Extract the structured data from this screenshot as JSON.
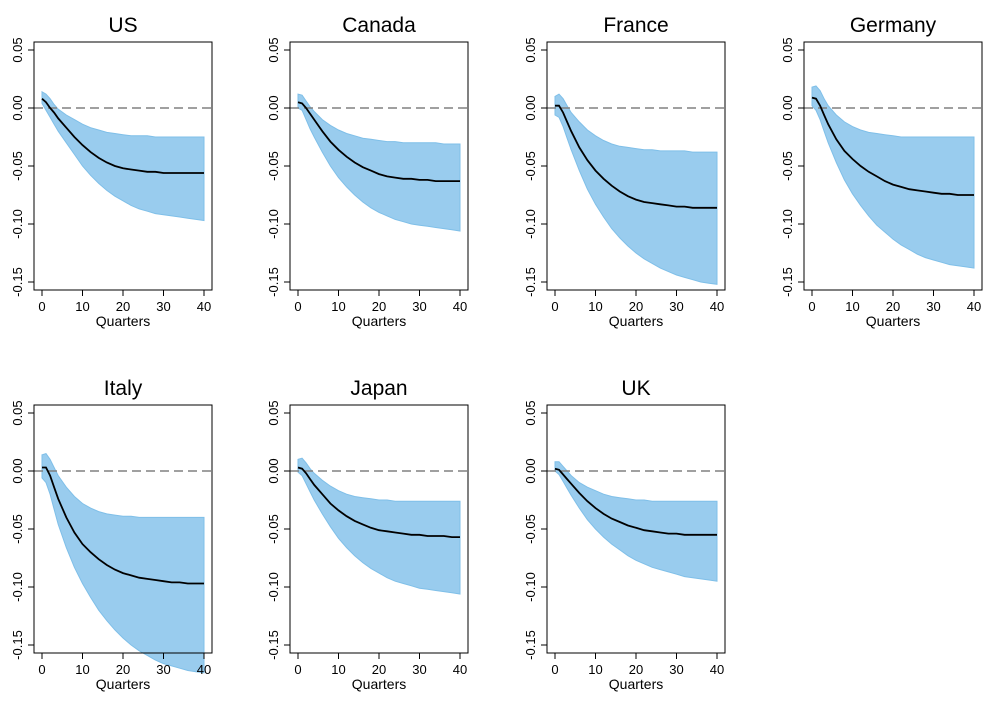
{
  "colors": {
    "band": "#99ccee",
    "band_edge": "#7fbfe8",
    "median": "#000000",
    "zero_line": "#808080"
  },
  "chart_data": [
    {
      "type": "area",
      "title": "US",
      "xlabel": "Quarters",
      "ylabel": "",
      "xlim": [
        0,
        40
      ],
      "ylim": [
        -0.15,
        0.05
      ],
      "grid": false,
      "xticks": [
        "0",
        "10",
        "20",
        "30",
        "40"
      ],
      "yticks": [
        "-0.15",
        "-0.10",
        "-0.05",
        "0.00",
        "0.05"
      ],
      "zero_line": true,
      "x": [
        0,
        1,
        2,
        3,
        4,
        6,
        8,
        10,
        12,
        14,
        16,
        18,
        20,
        22,
        24,
        26,
        28,
        30,
        32,
        34,
        36,
        38,
        40
      ],
      "series": [
        {
          "role": "median",
          "values": [
            0.008,
            0.005,
            0.0,
            -0.004,
            -0.009,
            -0.017,
            -0.025,
            -0.032,
            -0.038,
            -0.043,
            -0.047,
            -0.05,
            -0.052,
            -0.053,
            -0.054,
            -0.055,
            -0.055,
            -0.056,
            -0.056,
            -0.056,
            -0.056,
            -0.056,
            -0.056
          ]
        },
        {
          "role": "upper",
          "values": [
            0.014,
            0.012,
            0.008,
            0.003,
            -0.001,
            -0.006,
            -0.01,
            -0.014,
            -0.017,
            -0.019,
            -0.021,
            -0.022,
            -0.023,
            -0.024,
            -0.024,
            -0.024,
            -0.025,
            -0.025,
            -0.025,
            -0.025,
            -0.025,
            -0.025,
            -0.025
          ]
        },
        {
          "role": "lower",
          "values": [
            0.004,
            -0.002,
            -0.008,
            -0.014,
            -0.02,
            -0.03,
            -0.04,
            -0.05,
            -0.058,
            -0.065,
            -0.071,
            -0.076,
            -0.08,
            -0.084,
            -0.087,
            -0.089,
            -0.091,
            -0.092,
            -0.093,
            -0.094,
            -0.095,
            -0.096,
            -0.097
          ]
        }
      ]
    },
    {
      "type": "area",
      "title": "Canada",
      "xlabel": "Quarters",
      "ylabel": "",
      "xlim": [
        0,
        40
      ],
      "ylim": [
        -0.15,
        0.05
      ],
      "grid": false,
      "xticks": [
        "0",
        "10",
        "20",
        "30",
        "40"
      ],
      "yticks": [
        "-0.15",
        "-0.10",
        "-0.05",
        "0.00",
        "0.05"
      ],
      "zero_line": true,
      "x": [
        0,
        1,
        2,
        3,
        4,
        6,
        8,
        10,
        12,
        14,
        16,
        18,
        20,
        22,
        24,
        26,
        28,
        30,
        32,
        34,
        36,
        38,
        40
      ],
      "series": [
        {
          "role": "median",
          "values": [
            0.005,
            0.004,
            0.0,
            -0.005,
            -0.01,
            -0.02,
            -0.029,
            -0.036,
            -0.042,
            -0.047,
            -0.051,
            -0.054,
            -0.057,
            -0.059,
            -0.06,
            -0.061,
            -0.061,
            -0.062,
            -0.062,
            -0.063,
            -0.063,
            -0.063,
            -0.063
          ]
        },
        {
          "role": "upper",
          "values": [
            0.012,
            0.011,
            0.006,
            0.001,
            -0.003,
            -0.01,
            -0.015,
            -0.019,
            -0.022,
            -0.024,
            -0.026,
            -0.027,
            -0.028,
            -0.029,
            -0.029,
            -0.03,
            -0.03,
            -0.03,
            -0.03,
            -0.03,
            -0.031,
            -0.031,
            -0.031
          ]
        },
        {
          "role": "lower",
          "values": [
            0.0,
            -0.002,
            -0.01,
            -0.018,
            -0.025,
            -0.038,
            -0.05,
            -0.06,
            -0.068,
            -0.075,
            -0.081,
            -0.086,
            -0.09,
            -0.093,
            -0.096,
            -0.098,
            -0.1,
            -0.101,
            -0.102,
            -0.103,
            -0.104,
            -0.105,
            -0.106
          ]
        }
      ]
    },
    {
      "type": "area",
      "title": "France",
      "xlabel": "Quarters",
      "ylabel": "",
      "xlim": [
        0,
        40
      ],
      "ylim": [
        -0.15,
        0.05
      ],
      "grid": false,
      "xticks": [
        "0",
        "10",
        "20",
        "30",
        "40"
      ],
      "yticks": [
        "-0.15",
        "-0.10",
        "-0.05",
        "0.00",
        "0.05"
      ],
      "zero_line": true,
      "x": [
        0,
        1,
        2,
        3,
        4,
        6,
        8,
        10,
        12,
        14,
        16,
        18,
        20,
        22,
        24,
        26,
        28,
        30,
        32,
        34,
        36,
        38,
        40
      ],
      "series": [
        {
          "role": "median",
          "values": [
            0.002,
            0.002,
            -0.004,
            -0.012,
            -0.02,
            -0.034,
            -0.045,
            -0.054,
            -0.061,
            -0.067,
            -0.072,
            -0.076,
            -0.079,
            -0.081,
            -0.082,
            -0.083,
            -0.084,
            -0.085,
            -0.085,
            -0.086,
            -0.086,
            -0.086,
            -0.086
          ]
        },
        {
          "role": "upper",
          "values": [
            0.01,
            0.012,
            0.008,
            0.002,
            -0.004,
            -0.012,
            -0.019,
            -0.024,
            -0.028,
            -0.031,
            -0.033,
            -0.034,
            -0.035,
            -0.036,
            -0.036,
            -0.037,
            -0.037,
            -0.037,
            -0.037,
            -0.038,
            -0.038,
            -0.038,
            -0.038
          ]
        },
        {
          "role": "lower",
          "values": [
            -0.006,
            -0.008,
            -0.016,
            -0.026,
            -0.036,
            -0.054,
            -0.07,
            -0.083,
            -0.094,
            -0.104,
            -0.112,
            -0.119,
            -0.125,
            -0.13,
            -0.134,
            -0.138,
            -0.141,
            -0.144,
            -0.146,
            -0.148,
            -0.15,
            -0.151,
            -0.152
          ]
        }
      ]
    },
    {
      "type": "area",
      "title": "Germany",
      "xlabel": "Quarters",
      "ylabel": "",
      "xlim": [
        0,
        40
      ],
      "ylim": [
        -0.15,
        0.05
      ],
      "grid": false,
      "xticks": [
        "0",
        "10",
        "20",
        "30",
        "40"
      ],
      "yticks": [
        "-0.15",
        "-0.10",
        "-0.05",
        "0.00",
        "0.05"
      ],
      "zero_line": true,
      "x": [
        0,
        1,
        2,
        3,
        4,
        6,
        8,
        10,
        12,
        14,
        16,
        18,
        20,
        22,
        24,
        26,
        28,
        30,
        32,
        34,
        36,
        38,
        40
      ],
      "series": [
        {
          "role": "median",
          "values": [
            0.009,
            0.008,
            0.002,
            -0.006,
            -0.014,
            -0.027,
            -0.037,
            -0.044,
            -0.05,
            -0.055,
            -0.059,
            -0.063,
            -0.066,
            -0.068,
            -0.07,
            -0.071,
            -0.072,
            -0.073,
            -0.074,
            -0.074,
            -0.075,
            -0.075,
            -0.075
          ]
        },
        {
          "role": "upper",
          "values": [
            0.018,
            0.019,
            0.015,
            0.008,
            0.002,
            -0.006,
            -0.012,
            -0.016,
            -0.019,
            -0.021,
            -0.022,
            -0.023,
            -0.024,
            -0.025,
            -0.025,
            -0.025,
            -0.025,
            -0.025,
            -0.025,
            -0.025,
            -0.025,
            -0.025,
            -0.025
          ]
        },
        {
          "role": "lower",
          "values": [
            0.002,
            -0.002,
            -0.01,
            -0.02,
            -0.03,
            -0.047,
            -0.062,
            -0.074,
            -0.084,
            -0.093,
            -0.101,
            -0.107,
            -0.113,
            -0.118,
            -0.122,
            -0.126,
            -0.129,
            -0.131,
            -0.133,
            -0.135,
            -0.136,
            -0.137,
            -0.138
          ]
        }
      ]
    },
    {
      "type": "area",
      "title": "Italy",
      "xlabel": "Quarters",
      "ylabel": "",
      "xlim": [
        0,
        40
      ],
      "ylim": [
        -0.15,
        0.05
      ],
      "grid": false,
      "xticks": [
        "0",
        "10",
        "20",
        "30",
        "40"
      ],
      "yticks": [
        "-0.15",
        "-0.10",
        "-0.05",
        "0.00",
        "0.05"
      ],
      "zero_line": true,
      "x": [
        0,
        1,
        2,
        3,
        4,
        6,
        8,
        10,
        12,
        14,
        16,
        18,
        20,
        22,
        24,
        26,
        28,
        30,
        32,
        34,
        36,
        38,
        40
      ],
      "series": [
        {
          "role": "median",
          "values": [
            0.003,
            0.003,
            -0.004,
            -0.014,
            -0.024,
            -0.04,
            -0.053,
            -0.063,
            -0.07,
            -0.076,
            -0.081,
            -0.085,
            -0.088,
            -0.09,
            -0.092,
            -0.093,
            -0.094,
            -0.095,
            -0.096,
            -0.096,
            -0.097,
            -0.097,
            -0.097
          ]
        },
        {
          "role": "upper",
          "values": [
            0.014,
            0.015,
            0.01,
            0.003,
            -0.004,
            -0.014,
            -0.022,
            -0.028,
            -0.032,
            -0.035,
            -0.037,
            -0.038,
            -0.039,
            -0.039,
            -0.04,
            -0.04,
            -0.04,
            -0.04,
            -0.04,
            -0.04,
            -0.04,
            -0.04,
            -0.04
          ]
        },
        {
          "role": "lower",
          "values": [
            -0.006,
            -0.01,
            -0.02,
            -0.033,
            -0.046,
            -0.066,
            -0.083,
            -0.097,
            -0.109,
            -0.12,
            -0.129,
            -0.137,
            -0.144,
            -0.15,
            -0.155,
            -0.159,
            -0.163,
            -0.166,
            -0.168,
            -0.17,
            -0.172,
            -0.173,
            -0.174
          ]
        }
      ]
    },
    {
      "type": "area",
      "title": "Japan",
      "xlabel": "Quarters",
      "ylabel": "",
      "xlim": [
        0,
        40
      ],
      "ylim": [
        -0.15,
        0.05
      ],
      "grid": false,
      "xticks": [
        "0",
        "10",
        "20",
        "30",
        "40"
      ],
      "yticks": [
        "-0.15",
        "-0.10",
        "-0.05",
        "0.00",
        "0.05"
      ],
      "zero_line": true,
      "x": [
        0,
        1,
        2,
        3,
        4,
        6,
        8,
        10,
        12,
        14,
        16,
        18,
        20,
        22,
        24,
        26,
        28,
        30,
        32,
        34,
        36,
        38,
        40
      ],
      "series": [
        {
          "role": "median",
          "values": [
            0.003,
            0.002,
            -0.002,
            -0.007,
            -0.012,
            -0.02,
            -0.028,
            -0.034,
            -0.039,
            -0.043,
            -0.046,
            -0.049,
            -0.051,
            -0.052,
            -0.053,
            -0.054,
            -0.055,
            -0.055,
            -0.056,
            -0.056,
            -0.056,
            -0.057,
            -0.057
          ]
        },
        {
          "role": "upper",
          "values": [
            0.01,
            0.011,
            0.007,
            0.002,
            -0.002,
            -0.008,
            -0.013,
            -0.017,
            -0.02,
            -0.022,
            -0.023,
            -0.024,
            -0.025,
            -0.025,
            -0.026,
            -0.026,
            -0.026,
            -0.026,
            -0.026,
            -0.026,
            -0.026,
            -0.026,
            -0.026
          ]
        },
        {
          "role": "lower",
          "values": [
            -0.001,
            -0.004,
            -0.011,
            -0.018,
            -0.025,
            -0.037,
            -0.048,
            -0.058,
            -0.066,
            -0.073,
            -0.079,
            -0.084,
            -0.088,
            -0.092,
            -0.095,
            -0.097,
            -0.099,
            -0.101,
            -0.102,
            -0.103,
            -0.104,
            -0.105,
            -0.106
          ]
        }
      ]
    },
    {
      "type": "area",
      "title": "UK",
      "xlabel": "Quarters",
      "ylabel": "",
      "xlim": [
        0,
        40
      ],
      "ylim": [
        -0.15,
        0.05
      ],
      "grid": false,
      "xticks": [
        "0",
        "10",
        "20",
        "30",
        "40"
      ],
      "yticks": [
        "-0.15",
        "-0.10",
        "-0.05",
        "0.00",
        "0.05"
      ],
      "zero_line": true,
      "x": [
        0,
        1,
        2,
        3,
        4,
        6,
        8,
        10,
        12,
        14,
        16,
        18,
        20,
        22,
        24,
        26,
        28,
        30,
        32,
        34,
        36,
        38,
        40
      ],
      "series": [
        {
          "role": "median",
          "values": [
            0.002,
            0.001,
            -0.003,
            -0.007,
            -0.011,
            -0.019,
            -0.026,
            -0.032,
            -0.037,
            -0.041,
            -0.044,
            -0.047,
            -0.049,
            -0.051,
            -0.052,
            -0.053,
            -0.054,
            -0.054,
            -0.055,
            -0.055,
            -0.055,
            -0.055,
            -0.055
          ]
        },
        {
          "role": "upper",
          "values": [
            0.008,
            0.008,
            0.004,
            0.0,
            -0.004,
            -0.01,
            -0.014,
            -0.017,
            -0.02,
            -0.022,
            -0.023,
            -0.024,
            -0.025,
            -0.025,
            -0.026,
            -0.026,
            -0.026,
            -0.026,
            -0.026,
            -0.026,
            -0.026,
            -0.026,
            -0.026
          ]
        },
        {
          "role": "lower",
          "values": [
            0.0,
            -0.003,
            -0.009,
            -0.015,
            -0.021,
            -0.032,
            -0.042,
            -0.05,
            -0.057,
            -0.063,
            -0.068,
            -0.073,
            -0.077,
            -0.08,
            -0.083,
            -0.085,
            -0.087,
            -0.089,
            -0.091,
            -0.092,
            -0.093,
            -0.094,
            -0.095
          ]
        }
      ]
    }
  ]
}
